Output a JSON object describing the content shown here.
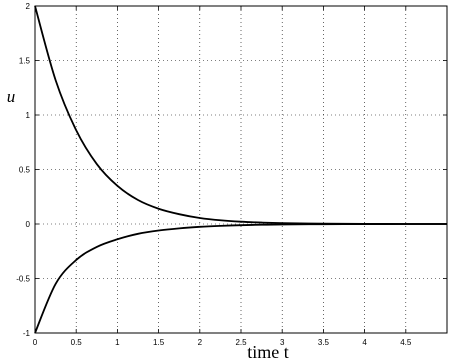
{
  "chart_data": {
    "type": "line",
    "xlabel": "time t",
    "ylabel": "u",
    "xlim": [
      0,
      5
    ],
    "ylim": [
      -1,
      2
    ],
    "grid": true,
    "x_ticks": [
      0,
      0.5,
      1,
      1.5,
      2,
      2.5,
      3,
      3.5,
      4,
      4.5
    ],
    "x_tick_labels": [
      "0",
      "0.5",
      "1",
      "1.5",
      "2",
      "2.5",
      "3",
      "3.5",
      "4",
      "4.5"
    ],
    "y_ticks": [
      -1,
      -0.5,
      0,
      0.5,
      1,
      1.5,
      2
    ],
    "y_tick_labels": [
      "-1",
      "-0.5",
      "0",
      "0.5",
      "1",
      "1.5",
      "2"
    ],
    "series": [
      {
        "x": [
          0,
          0.25,
          0.5,
          0.75,
          1,
          1.25,
          1.5,
          1.75,
          2,
          2.25,
          2.5,
          2.75,
          3,
          3.5,
          4,
          4.5,
          5
        ],
        "values": [
          2,
          1.32,
          0.86,
          0.55,
          0.35,
          0.22,
          0.14,
          0.09,
          0.055,
          0.034,
          0.021,
          0.013,
          0.008,
          0.003,
          0.001,
          0,
          0
        ],
        "color": "#000000"
      },
      {
        "x": [
          0,
          0.25,
          0.5,
          0.75,
          1,
          1.25,
          1.5,
          1.75,
          2,
          2.25,
          2.5,
          2.75,
          3,
          3.5,
          4,
          4.5,
          5
        ],
        "values": [
          -1,
          -0.55,
          -0.33,
          -0.21,
          -0.14,
          -0.09,
          -0.06,
          -0.04,
          -0.026,
          -0.017,
          -0.011,
          -0.007,
          -0.004,
          -0.002,
          -0.001,
          0,
          0
        ],
        "color": "#000000"
      }
    ]
  }
}
